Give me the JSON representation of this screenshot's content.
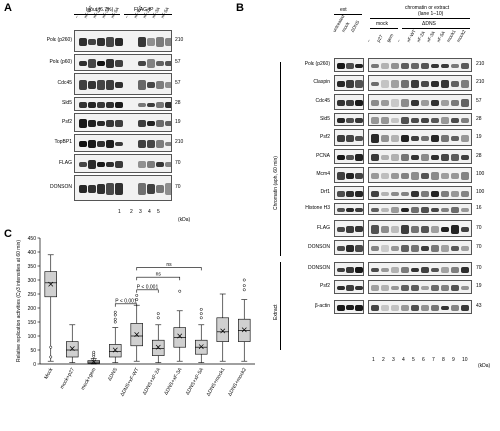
{
  "panel_labels": [
    "A",
    "B",
    "C"
  ],
  "panelA": {
    "input_header": "Input (6.7%)",
    "ip_header": "FLAG-IP",
    "lane_labels": [
      "–",
      "xF-WT",
      "xF-2A",
      "xF-3A",
      "xF-5A",
      "–",
      "xF-WT",
      "xF-2A",
      "xF-3A",
      "xF-5A"
    ],
    "lane_numbers": [
      "1",
      "2",
      "3",
      "4",
      "5"
    ],
    "kda_unit": "(kDa)",
    "rows": [
      {
        "label": "Polε (p260)",
        "marker": "210"
      },
      {
        "label": "Polε (p60)",
        "marker": "57"
      },
      {
        "label": "Cdc45",
        "marker": "57"
      },
      {
        "label": "Sld5",
        "marker": "28"
      },
      {
        "label": "Psf2",
        "marker": "19"
      },
      {
        "label": "TopBP1",
        "marker": "210"
      },
      {
        "label": "FLAG",
        "marker": "70"
      },
      {
        "label": "DONSON",
        "marker": "70"
      }
    ]
  },
  "panelB": {
    "ext_header": "ext",
    "chrom_header": "chromatin or extract",
    "chrom_subheader": "(lane 1–10)",
    "mock_header": "mock",
    "dns_header": "ΔDNS",
    "left_lanes": [
      "untreated",
      "mock",
      "ΔDNS"
    ],
    "lane_labels": [
      "–",
      "p27",
      "gem",
      "–",
      "xF-WT",
      "xF-2A",
      "xF-3A",
      "xF-5A",
      "mock1",
      "mock2"
    ],
    "lane_numbers": [
      "1",
      "2",
      "3",
      "4",
      "5",
      "6",
      "7",
      "8",
      "9",
      "10"
    ],
    "kda_unit": "(kDa)",
    "chromatin_side_label": "Chromatin (aph, 60 min)",
    "extract_side_label": "Extract",
    "chromatin_rows": [
      {
        "label": "Polε (p260)",
        "marker": "210"
      },
      {
        "label": "Claspin",
        "marker": "210"
      },
      {
        "label": "Cdc45",
        "marker": "57"
      },
      {
        "label": "Sld5",
        "marker": "28"
      },
      {
        "label": "Psf2",
        "marker": "19"
      },
      {
        "label": "PCNA",
        "marker": "28"
      },
      {
        "label": "Mcm4",
        "marker": "100"
      },
      {
        "label": "Drf1",
        "marker": "100"
      },
      {
        "label": "Histone H3",
        "marker": "16"
      },
      {
        "label": "FLAG",
        "marker": "70"
      },
      {
        "label": "DONSON",
        "marker": "70"
      }
    ],
    "extract_rows": [
      {
        "label": "DONSON",
        "marker": "70"
      },
      {
        "label": "Psf2",
        "marker": "19"
      },
      {
        "label": "β-actin",
        "marker": "43"
      }
    ]
  },
  "chart_data": {
    "type": "box",
    "ylabel": "Relative replication activities (Cy3 intensities at 60 min)",
    "ylim": [
      0,
      450
    ],
    "yticks": [
      0,
      50,
      100,
      150,
      200,
      250,
      300,
      350,
      400,
      450
    ],
    "categories": [
      "Mock",
      "mock+p27",
      "mock+gem",
      "ΔDNS",
      "ΔDNS+xF-WT",
      "ΔDNS+xF-2A",
      "ΔDNS+xF-3A",
      "ΔDNS+xF-5A",
      "ΔDNS+mock1",
      "ΔDNS+mock2"
    ],
    "boxes": [
      {
        "whisker_low": 10,
        "q1": 240,
        "median": 290,
        "q3": 330,
        "whisker_high": 390,
        "mean": 285,
        "outliers": [
          60,
          25
        ]
      },
      {
        "whisker_low": 5,
        "q1": 25,
        "median": 50,
        "q3": 80,
        "whisker_high": 140,
        "mean": 55,
        "outliers": []
      },
      {
        "whisker_low": 0,
        "q1": 3,
        "median": 7,
        "q3": 12,
        "whisker_high": 20,
        "mean": 8,
        "outliers": [
          28,
          35,
          42
        ]
      },
      {
        "whisker_low": 5,
        "q1": 25,
        "median": 45,
        "q3": 70,
        "whisker_high": 130,
        "mean": 50,
        "outliers": [
          150,
          160,
          175,
          185
        ]
      },
      {
        "whisker_low": 10,
        "q1": 65,
        "median": 100,
        "q3": 145,
        "whisker_high": 210,
        "mean": 105,
        "outliers": [
          230,
          245
        ]
      },
      {
        "whisker_low": 5,
        "q1": 30,
        "median": 55,
        "q3": 85,
        "whisker_high": 140,
        "mean": 60,
        "outliers": [
          165,
          180
        ]
      },
      {
        "whisker_low": 10,
        "q1": 60,
        "median": 95,
        "q3": 130,
        "whisker_high": 190,
        "mean": 100,
        "outliers": [
          260
        ]
      },
      {
        "whisker_low": 5,
        "q1": 35,
        "median": 60,
        "q3": 85,
        "whisker_high": 140,
        "mean": 62,
        "outliers": [
          165,
          180,
          195
        ]
      },
      {
        "whisker_low": 10,
        "q1": 80,
        "median": 115,
        "q3": 165,
        "whisker_high": 250,
        "mean": 118,
        "outliers": []
      },
      {
        "whisker_low": 10,
        "q1": 80,
        "median": 120,
        "q3": 160,
        "whisker_high": 230,
        "mean": 122,
        "outliers": [
          265,
          280,
          300
        ]
      }
    ],
    "comparisons": [
      {
        "from": 3,
        "to": 4,
        "label": "P < 0.001"
      },
      {
        "from": 4,
        "to": 5,
        "label": "P < 0.001"
      },
      {
        "from": 4,
        "to": 6,
        "label": "ns"
      },
      {
        "from": 4,
        "to": 7,
        "label": "ns"
      }
    ]
  }
}
